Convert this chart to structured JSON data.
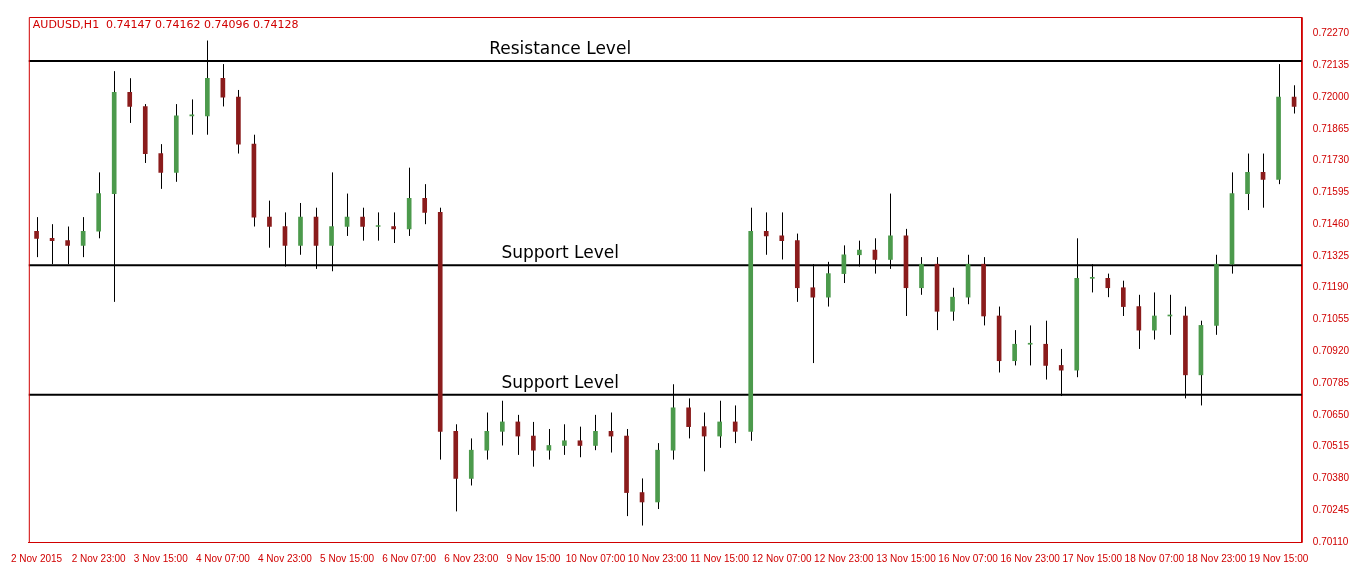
{
  "chart_data": {
    "type": "candlestick",
    "title": "AUDUSD,H1  0.74147 0.74162 0.74096 0.74128",
    "categories": [
      "2 Nov 2015",
      null,
      null,
      null,
      "2 Nov 23:00",
      null,
      null,
      null,
      "3 Nov 15:00",
      null,
      null,
      null,
      "4 Nov 07:00",
      null,
      null,
      null,
      "4 Nov 23:00",
      null,
      null,
      null,
      "5 Nov 15:00",
      null,
      null,
      null,
      "6 Nov 07:00",
      null,
      null,
      null,
      "6 Nov 23:00",
      null,
      null,
      null,
      "9 Nov 15:00",
      null,
      null,
      null,
      "10 Nov 07:00",
      null,
      null,
      null,
      "10 Nov 23:00",
      null,
      null,
      null,
      "11 Nov 15:00",
      null,
      null,
      null,
      "12 Nov 07:00",
      null,
      null,
      null,
      "12 Nov 23:00",
      null,
      null,
      null,
      "13 Nov 15:00",
      null,
      null,
      null,
      "16 Nov 07:00",
      null,
      null,
      null,
      "16 Nov 23:00",
      null,
      null,
      null,
      "17 Nov 15:00",
      null,
      null,
      null,
      "18 Nov 07:00",
      null,
      null,
      null,
      "18 Nov 23:00",
      null,
      null,
      null,
      "19 Nov 15:00",
      null
    ],
    "ohlc": [
      [
        0.7143,
        0.7149,
        0.7132,
        0.714
      ],
      [
        0.714,
        0.7146,
        0.7129,
        0.7139
      ],
      [
        0.7139,
        0.7145,
        0.7129,
        0.7137
      ],
      [
        0.7137,
        0.7149,
        0.7132,
        0.7143
      ],
      [
        0.7143,
        0.7168,
        0.714,
        0.7159
      ],
      [
        0.7159,
        0.7211,
        0.7113,
        0.7202
      ],
      [
        0.7202,
        0.7208,
        0.7189,
        0.7196
      ],
      [
        0.7196,
        0.7197,
        0.7172,
        0.7176
      ],
      [
        0.7176,
        0.718,
        0.7161,
        0.7168
      ],
      [
        0.7168,
        0.7197,
        0.7164,
        0.7192
      ],
      [
        0.7192,
        0.7199,
        0.7184,
        0.7192
      ],
      [
        0.7192,
        0.7224,
        0.7184,
        0.7208
      ],
      [
        0.7208,
        0.7214,
        0.7196,
        0.72
      ],
      [
        0.72,
        0.7203,
        0.7176,
        0.718
      ],
      [
        0.718,
        0.7184,
        0.7145,
        0.7149
      ],
      [
        0.7149,
        0.7156,
        0.7136,
        0.7145
      ],
      [
        0.7145,
        0.7151,
        0.7128,
        0.7137
      ],
      [
        0.7137,
        0.7155,
        0.7133,
        0.7149
      ],
      [
        0.7149,
        0.7153,
        0.7127,
        0.7137
      ],
      [
        0.7137,
        0.7168,
        0.7126,
        0.7145
      ],
      [
        0.7145,
        0.7159,
        0.7141,
        0.7149
      ],
      [
        0.7149,
        0.7153,
        0.7139,
        0.7145
      ],
      [
        0.7145,
        0.7151,
        0.7139,
        0.7145
      ],
      [
        0.7145,
        0.7151,
        0.7138,
        0.7144
      ],
      [
        0.7144,
        0.717,
        0.7141,
        0.7157
      ],
      [
        0.7157,
        0.7163,
        0.7146,
        0.7151
      ],
      [
        0.7151,
        0.7153,
        0.7046,
        0.7058
      ],
      [
        0.7058,
        0.7061,
        0.7024,
        0.7038
      ],
      [
        0.7038,
        0.7055,
        0.7035,
        0.705
      ],
      [
        0.705,
        0.7066,
        0.7046,
        0.7058
      ],
      [
        0.7058,
        0.7071,
        0.7052,
        0.7062
      ],
      [
        0.7062,
        0.7065,
        0.7048,
        0.7056
      ],
      [
        0.7056,
        0.7062,
        0.7043,
        0.705
      ],
      [
        0.705,
        0.7059,
        0.7046,
        0.7052
      ],
      [
        0.7052,
        0.7061,
        0.7048,
        0.7054
      ],
      [
        0.7054,
        0.706,
        0.7047,
        0.7052
      ],
      [
        0.7052,
        0.7065,
        0.705,
        0.7058
      ],
      [
        0.7058,
        0.7066,
        0.7049,
        0.7056
      ],
      [
        0.7056,
        0.7059,
        0.7022,
        0.7032
      ],
      [
        0.7032,
        0.7038,
        0.7018,
        0.7028
      ],
      [
        0.7028,
        0.7053,
        0.7025,
        0.705
      ],
      [
        0.705,
        0.7078,
        0.7046,
        0.7068
      ],
      [
        0.7068,
        0.7072,
        0.7055,
        0.706
      ],
      [
        0.706,
        0.7066,
        0.7041,
        0.7056
      ],
      [
        0.7056,
        0.7071,
        0.7051,
        0.7062
      ],
      [
        0.7062,
        0.7069,
        0.7053,
        0.7058
      ],
      [
        0.7058,
        0.7153,
        0.7054,
        0.7143
      ],
      [
        0.7143,
        0.7151,
        0.7133,
        0.7141
      ],
      [
        0.7141,
        0.7151,
        0.7131,
        0.7139
      ],
      [
        0.7139,
        0.7142,
        0.7113,
        0.7119
      ],
      [
        0.7119,
        0.7129,
        0.7087,
        0.7115
      ],
      [
        0.7115,
        0.713,
        0.7111,
        0.7125
      ],
      [
        0.7125,
        0.7137,
        0.7121,
        0.7133
      ],
      [
        0.7133,
        0.7139,
        0.7128,
        0.7135
      ],
      [
        0.7135,
        0.714,
        0.7125,
        0.7131
      ],
      [
        0.7131,
        0.7159,
        0.7127,
        0.7141
      ],
      [
        0.7141,
        0.7144,
        0.7107,
        0.7119
      ],
      [
        0.7119,
        0.7132,
        0.7116,
        0.7129
      ],
      [
        0.7129,
        0.7132,
        0.7101,
        0.7109
      ],
      [
        0.7109,
        0.7119,
        0.7105,
        0.7115
      ],
      [
        0.7115,
        0.7133,
        0.7112,
        0.7129
      ],
      [
        0.7129,
        0.7132,
        0.7103,
        0.7107
      ],
      [
        0.7107,
        0.7111,
        0.7083,
        0.7088
      ],
      [
        0.7088,
        0.7101,
        0.7086,
        0.7095
      ],
      [
        0.7095,
        0.7103,
        0.7086,
        0.7095
      ],
      [
        0.7095,
        0.7105,
        0.708,
        0.7086
      ],
      [
        0.7086,
        0.7093,
        0.7073,
        0.7084
      ],
      [
        0.7084,
        0.714,
        0.7081,
        0.7123
      ],
      [
        0.7123,
        0.7129,
        0.7117,
        0.7123
      ],
      [
        0.7123,
        0.7125,
        0.7115,
        0.7119
      ],
      [
        0.7119,
        0.7122,
        0.7107,
        0.7111
      ],
      [
        0.7111,
        0.7116,
        0.7093,
        0.7101
      ],
      [
        0.7101,
        0.7117,
        0.7097,
        0.7107
      ],
      [
        0.7107,
        0.7116,
        0.7099,
        0.7107
      ],
      [
        0.7107,
        0.7111,
        0.7072,
        0.7082
      ],
      [
        0.7082,
        0.7105,
        0.7069,
        0.7103
      ],
      [
        0.7103,
        0.7133,
        0.7099,
        0.7129
      ],
      [
        0.7129,
        0.7168,
        0.7125,
        0.7159
      ],
      [
        0.7159,
        0.7176,
        0.7152,
        0.7168
      ],
      [
        0.7168,
        0.7176,
        0.7153,
        0.7165
      ],
      [
        0.7165,
        0.7214,
        0.7163,
        0.72
      ],
      [
        0.72,
        0.7205,
        0.7193,
        0.7196
      ]
    ],
    "colors": [
      "#8b1c1c",
      "#8b1c1c",
      "#8b1c1c",
      "#4c9a4c",
      "#4c9a4c",
      "#4c9a4c",
      "#8b1c1c",
      "#8b1c1c",
      "#8b1c1c",
      "#4c9a4c",
      "#4c9a4c",
      "#4c9a4c",
      "#8b1c1c",
      "#8b1c1c",
      "#8b1c1c",
      "#8b1c1c",
      "#8b1c1c",
      "#4c9a4c",
      "#8b1c1c",
      "#4c9a4c",
      "#4c9a4c",
      "#8b1c1c",
      "#4c9a4c",
      "#8b1c1c",
      "#4c9a4c",
      "#8b1c1c",
      "#8b1c1c",
      "#8b1c1c",
      "#4c9a4c",
      "#4c9a4c",
      "#4c9a4c",
      "#8b1c1c",
      "#8b1c1c",
      "#4c9a4c",
      "#4c9a4c",
      "#8b1c1c",
      "#4c9a4c",
      "#8b1c1c",
      "#8b1c1c",
      "#8b1c1c",
      "#4c9a4c",
      "#4c9a4c",
      "#8b1c1c",
      "#8b1c1c",
      "#4c9a4c",
      "#8b1c1c",
      "#4c9a4c",
      "#8b1c1c",
      "#8b1c1c",
      "#8b1c1c",
      "#8b1c1c",
      "#4c9a4c",
      "#4c9a4c",
      "#4c9a4c",
      "#8b1c1c",
      "#4c9a4c",
      "#8b1c1c",
      "#4c9a4c",
      "#8b1c1c",
      "#4c9a4c",
      "#4c9a4c",
      "#8b1c1c",
      "#8b1c1c",
      "#4c9a4c",
      "#4c9a4c",
      "#8b1c1c",
      "#8b1c1c",
      "#4c9a4c",
      "#4c9a4c",
      "#8b1c1c",
      "#8b1c1c",
      "#8b1c1c",
      "#4c9a4c",
      "#4c9a4c",
      "#8b1c1c",
      "#4c9a4c",
      "#4c9a4c",
      "#4c9a4c",
      "#4c9a4c",
      "#8b1c1c",
      "#4c9a4c",
      "#8b1c1c"
    ],
    "ylim": [
      0.7011,
      0.7234
    ],
    "yticks": [
      {
        "value": 0.7227,
        "label": "0.72270"
      },
      {
        "value": 0.72135,
        "label": "0.72135"
      },
      {
        "value": 0.72,
        "label": "0.72000"
      },
      {
        "value": 0.71865,
        "label": "0.71865"
      },
      {
        "value": 0.7173,
        "label": "0.71730"
      },
      {
        "value": 0.71595,
        "label": "0.71595"
      },
      {
        "value": 0.7146,
        "label": "0.71460"
      },
      {
        "value": 0.71325,
        "label": "0.71325"
      },
      {
        "value": 0.7119,
        "label": "0.71190"
      },
      {
        "value": 0.71055,
        "label": "0.71055"
      },
      {
        "value": 0.7092,
        "label": "0.70920"
      },
      {
        "value": 0.70785,
        "label": "0.70785"
      },
      {
        "value": 0.7065,
        "label": "0.70650"
      },
      {
        "value": 0.70515,
        "label": "0.70515"
      },
      {
        "value": 0.7038,
        "label": "0.70380"
      },
      {
        "value": 0.70245,
        "label": "0.70245"
      },
      {
        "value": 0.7011,
        "label": "0.70110"
      }
    ],
    "ref_lines": [
      {
        "axis": "y",
        "value": 0.72153,
        "label": "Resistance Level",
        "color": "#000000"
      },
      {
        "axis": "y",
        "value": 0.71286,
        "label": "Support Level",
        "color": "#000000"
      },
      {
        "axis": "y",
        "value": 0.70735,
        "label": "Support Level",
        "color": "#000000"
      }
    ],
    "grid": false,
    "legend": false
  }
}
